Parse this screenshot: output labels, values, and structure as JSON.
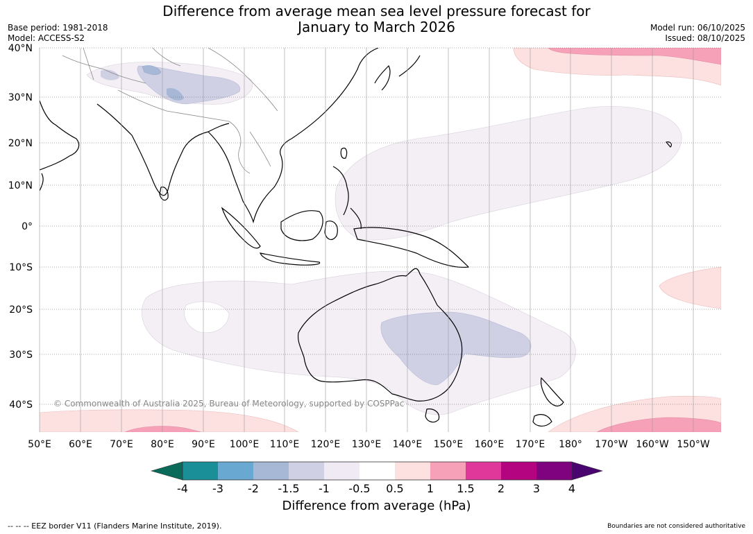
{
  "title": {
    "line1": "Difference from average mean sea level pressure forecast for",
    "line2": "January to March 2026"
  },
  "meta": {
    "base_period": "Base period: 1981-2018",
    "model": "Model: ACCESS-S2",
    "model_run": "Model run: 06/10/2025",
    "issued": "Issued: 08/10/2025"
  },
  "map": {
    "copyright": "© Commonwealth of Australia 2025, Bureau of Meteorology, supported by COSPPac",
    "lat_labels": [
      "40°N",
      "30°N",
      "20°N",
      "10°N",
      "0°",
      "10°S",
      "20°S",
      "30°S",
      "40°S"
    ],
    "lon_labels": [
      "50°E",
      "60°E",
      "70°E",
      "80°E",
      "90°E",
      "100°E",
      "110°E",
      "120°E",
      "130°E",
      "140°E",
      "150°E",
      "160°E",
      "170°E",
      "180°",
      "170°W",
      "160°W",
      "150°W"
    ]
  },
  "colorbar": {
    "title": "Difference from average (hPa)",
    "tick_labels": [
      "-4",
      "-3",
      "-2",
      "-1.5",
      "-1",
      "-0.5",
      "0.5",
      "1",
      "1.5",
      "2",
      "3",
      "4"
    ],
    "colors": [
      "#0b6b5a",
      "#1b8f98",
      "#69a8d0",
      "#a6b8d6",
      "#cfd0e4",
      "#efeaf3",
      "#ffffff",
      "#fde0e0",
      "#f7a1b9",
      "#e0389a",
      "#b4047f",
      "#7f037e",
      "#4a0470"
    ]
  },
  "footer": {
    "legend": "-- -- -- EEZ border V11 (Flanders Marine Institute, 2019).",
    "disclaimer": "Boundaries are not considered authoritative"
  }
}
